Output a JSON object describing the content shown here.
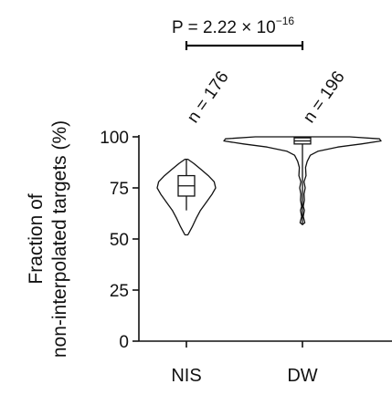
{
  "chart_data": {
    "type": "violin",
    "ylabel_line1": "Fraction of",
    "ylabel_line2": "non-interpolated targets (%)",
    "ylim": [
      0,
      100
    ],
    "yticks": [
      0,
      25,
      50,
      75,
      100
    ],
    "yticklabels": [
      "0",
      "25",
      "50",
      "75",
      "100"
    ],
    "categories": [
      "NIS",
      "DW"
    ],
    "groups": [
      {
        "category": "NIS",
        "n_label": "n = 176",
        "min": 52,
        "max": 89,
        "box": {
          "q1": 71,
          "median": 76,
          "q3": 81
        },
        "whisker": [
          64,
          89
        ],
        "density": [
          [
            52,
            0.05
          ],
          [
            56,
            0.2
          ],
          [
            60,
            0.33
          ],
          [
            64,
            0.48
          ],
          [
            68,
            0.68
          ],
          [
            72,
            0.88
          ],
          [
            75,
            1.0
          ],
          [
            78,
            0.95
          ],
          [
            81,
            0.75
          ],
          [
            84,
            0.5
          ],
          [
            87,
            0.25
          ],
          [
            89,
            0.05
          ]
        ]
      },
      {
        "category": "DW",
        "n_label": "n = 196",
        "min": 57,
        "max": 100,
        "box": {
          "q1": 96.5,
          "median": 98,
          "q3": 99.5
        },
        "whisker": [
          57,
          100
        ],
        "density": [
          [
            57,
            0.0
          ],
          [
            58,
            0.03
          ],
          [
            61,
            0.01
          ],
          [
            64,
            0.025
          ],
          [
            66,
            0.01
          ],
          [
            69,
            0.025
          ],
          [
            72,
            0.02
          ],
          [
            75,
            0.035
          ],
          [
            78,
            0.02
          ],
          [
            81,
            0.045
          ],
          [
            85,
            0.04
          ],
          [
            88,
            0.06
          ],
          [
            91,
            0.1
          ],
          [
            93,
            0.2
          ],
          [
            95,
            0.45
          ],
          [
            96.5,
            0.75
          ],
          [
            98,
            1.0
          ],
          [
            99,
            0.98
          ],
          [
            100,
            0.6
          ]
        ]
      }
    ],
    "comparison": {
      "label_prefix": "P = 2.22 × 10",
      "label_exponent": "−16"
    }
  }
}
